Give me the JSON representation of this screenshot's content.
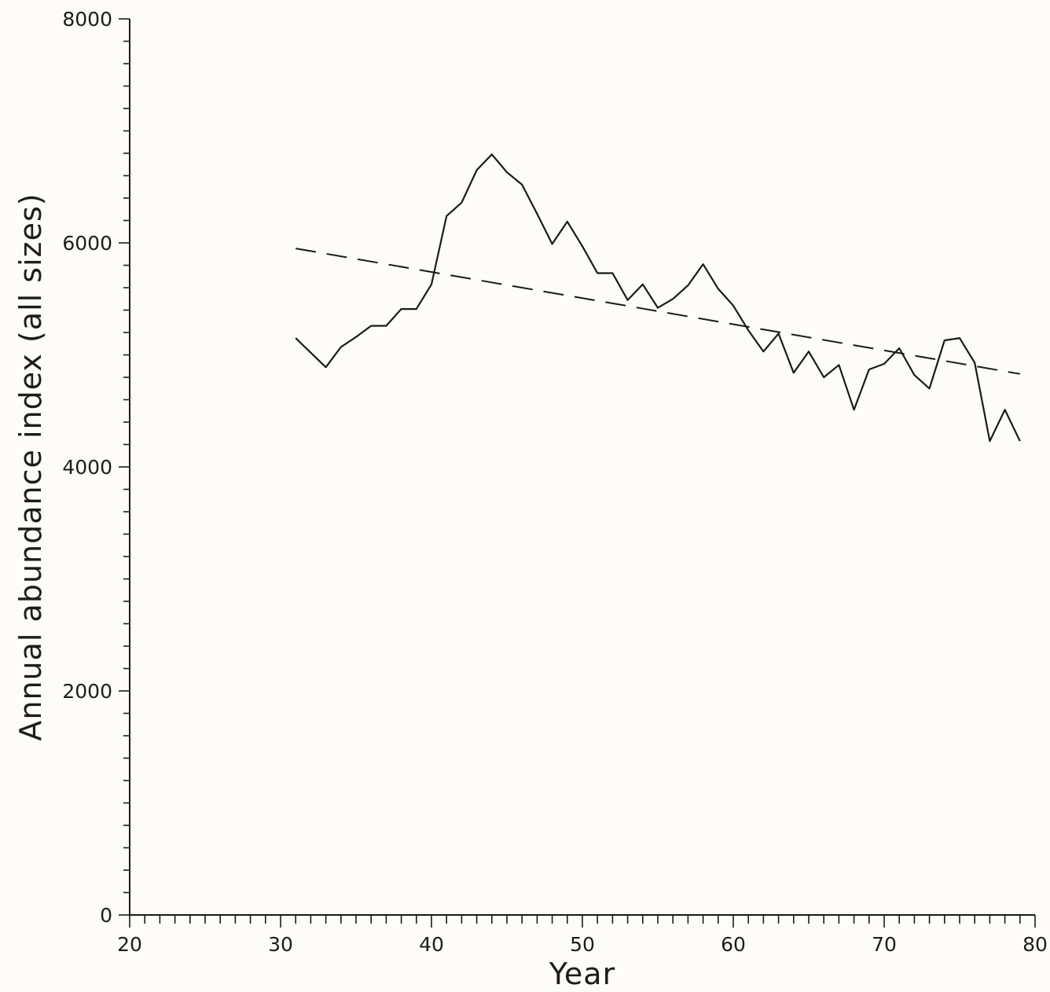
{
  "chart_data": {
    "type": "line",
    "xlabel": "Year",
    "ylabel": "Annual abundance index (all sizes)",
    "xlim": [
      20,
      80
    ],
    "ylim": [
      0,
      8000
    ],
    "x_major_ticks": [
      20,
      30,
      40,
      50,
      60,
      70,
      80
    ],
    "x_minor_step": 1,
    "y_major_ticks": [
      0,
      2000,
      4000,
      6000,
      8000
    ],
    "y_minor_step": 200,
    "x_tick_labels": [
      "20",
      "30",
      "40",
      "50",
      "60",
      "70",
      "80"
    ],
    "y_tick_labels": [
      "0",
      "2000",
      "4000",
      "6000",
      "8000"
    ],
    "grid": false,
    "series": [
      {
        "style": "solid",
        "x": [
          31,
          32,
          33,
          34,
          35,
          36,
          37,
          38,
          39,
          40,
          41,
          42,
          43,
          44,
          45,
          46,
          47,
          48,
          49,
          50,
          51,
          52,
          53,
          54,
          55,
          56,
          57,
          58,
          59,
          60,
          61,
          62,
          63,
          64,
          65,
          66,
          67,
          68,
          69,
          70,
          71,
          72,
          73,
          74,
          75,
          76,
          77,
          78,
          79
        ],
        "values": [
          5150,
          5020,
          4890,
          5070,
          5160,
          5260,
          5260,
          5410,
          5410,
          5630,
          6240,
          6360,
          6650,
          6790,
          6630,
          6520,
          6260,
          5990,
          6190,
          5970,
          5730,
          5730,
          5490,
          5630,
          5420,
          5500,
          5620,
          5810,
          5590,
          5440,
          5220,
          5030,
          5190,
          4840,
          5030,
          4800,
          4910,
          4510,
          4870,
          4920,
          5060,
          4820,
          4700,
          5130,
          5150,
          4930,
          4230,
          4510,
          4230
        ]
      },
      {
        "style": "dashed",
        "x": [
          31,
          79
        ],
        "values": [
          5950,
          4830
        ]
      }
    ]
  }
}
